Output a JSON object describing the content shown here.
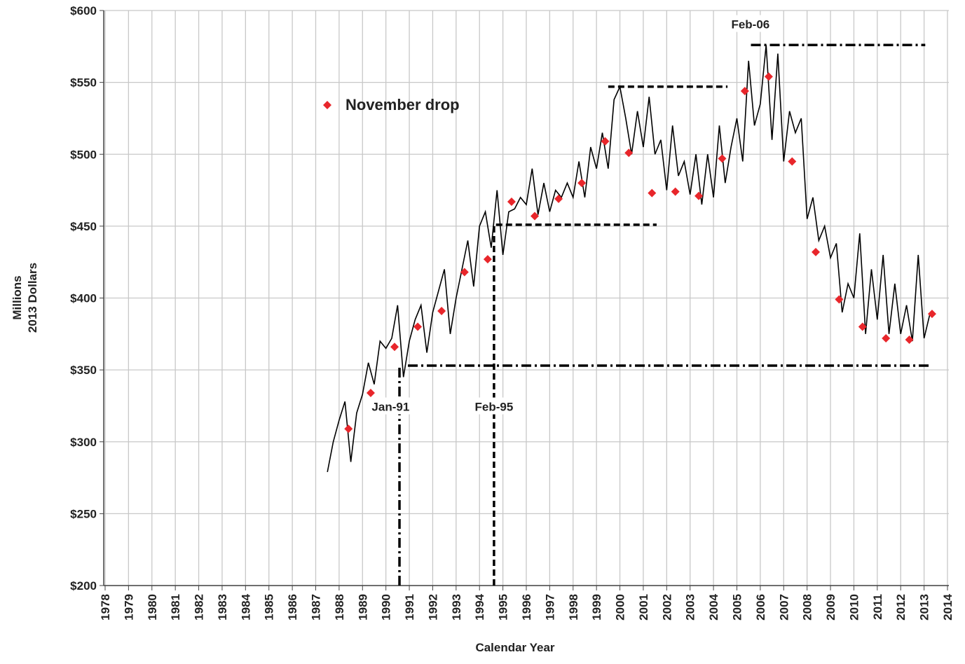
{
  "chart_data": {
    "type": "line",
    "xlabel": "Calendar Year",
    "ylabel": [
      "Millions",
      "2013 Dollars"
    ],
    "xlim": [
      1978,
      2014
    ],
    "ylim": [
      200,
      600
    ],
    "xticks": [
      1978,
      1979,
      1980,
      1981,
      1982,
      1983,
      1984,
      1985,
      1986,
      1987,
      1988,
      1989,
      1990,
      1991,
      1992,
      1993,
      1994,
      1995,
      1996,
      1997,
      1998,
      1999,
      2000,
      2001,
      2002,
      2003,
      2004,
      2005,
      2006,
      2007,
      2008,
      2009,
      2010,
      2011,
      2012,
      2013,
      2014
    ],
    "yticks": [
      {
        "value": 200,
        "label": "$200"
      },
      {
        "value": 250,
        "label": "$250"
      },
      {
        "value": 300,
        "label": "$300"
      },
      {
        "value": 350,
        "label": "$350"
      },
      {
        "value": 400,
        "label": "$400"
      },
      {
        "value": 450,
        "label": "$450"
      },
      {
        "value": 500,
        "label": "$500"
      },
      {
        "value": 550,
        "label": "$550"
      },
      {
        "value": 600,
        "label": "$600"
      }
    ],
    "grid": true,
    "x": [
      1987.5,
      1987.75,
      1988,
      1988.25,
      1988.5,
      1988.75,
      1989,
      1989.25,
      1989.5,
      1989.75,
      1990,
      1990.25,
      1990.5,
      1990.75,
      1991,
      1991.25,
      1991.5,
      1991.75,
      1992,
      1992.25,
      1992.5,
      1992.75,
      1993,
      1993.25,
      1993.5,
      1993.75,
      1994,
      1994.25,
      1994.5,
      1994.75,
      1995,
      1995.25,
      1995.5,
      1995.75,
      1996,
      1996.25,
      1996.5,
      1996.75,
      1997,
      1997.25,
      1997.5,
      1997.75,
      1998,
      1998.25,
      1998.5,
      1998.75,
      1999,
      1999.25,
      1999.5,
      1999.75,
      2000,
      2000.25,
      2000.5,
      2000.75,
      2001,
      2001.25,
      2001.5,
      2001.75,
      2002,
      2002.25,
      2002.5,
      2002.75,
      2003,
      2003.25,
      2003.5,
      2003.75,
      2004,
      2004.25,
      2004.5,
      2004.75,
      2005,
      2005.25,
      2005.5,
      2005.75,
      2006,
      2006.25,
      2006.5,
      2006.75,
      2007,
      2007.25,
      2007.5,
      2007.75,
      2008,
      2008.25,
      2008.5,
      2008.75,
      2009,
      2009.25,
      2009.5,
      2009.75,
      2010,
      2010.25,
      2010.5,
      2010.75,
      2011,
      2011.25,
      2011.5,
      2011.75,
      2012,
      2012.25,
      2012.5,
      2012.75,
      2013,
      2013.25
    ],
    "series": [
      {
        "color": "#000000",
        "values": [
          279,
          300,
          315,
          328,
          286,
          320,
          333,
          355,
          340,
          370,
          365,
          372,
          395,
          345,
          370,
          385,
          395,
          362,
          390,
          405,
          420,
          375,
          400,
          420,
          440,
          408,
          450,
          460,
          435,
          475,
          430,
          460,
          462,
          470,
          465,
          490,
          458,
          480,
          460,
          475,
          470,
          480,
          470,
          495,
          470,
          505,
          490,
          515,
          490,
          538,
          547,
          525,
          500,
          530,
          505,
          540,
          500,
          510,
          475,
          520,
          485,
          495,
          472,
          500,
          465,
          500,
          470,
          520,
          480,
          505,
          525,
          495,
          565,
          520,
          535,
          576,
          510,
          570,
          495,
          530,
          515,
          525,
          455,
          470,
          440,
          450,
          428,
          438,
          390,
          410,
          400,
          445,
          375,
          420,
          385,
          430,
          375,
          410,
          375,
          395,
          370,
          430,
          372,
          389
        ]
      },
      {
        "name": "November drop",
        "kind": "scatter",
        "color": "#e8262b",
        "x": [
          1988.4,
          1989.35,
          1990.37,
          1991.36,
          1992.38,
          1993.36,
          1994.35,
          1995.37,
          1996.36,
          1997.38,
          1998.37,
          1999.37,
          2000.38,
          2001.37,
          2002.37,
          2003.37,
          2004.37,
          2005.34,
          2006.36,
          2007.36,
          2008.37,
          2009.37,
          2010.37,
          2011.37,
          2012.37,
          2013.34
        ],
        "values": [
          309,
          334,
          366,
          380,
          391,
          418,
          427,
          467,
          457,
          469,
          480,
          509,
          501,
          473,
          474,
          471,
          497,
          544,
          554,
          495,
          432,
          399,
          380,
          372,
          371,
          389
        ]
      }
    ],
    "reference_lines": [
      {
        "style": "dashed",
        "x": [
          1999.5,
          2004.6
        ],
        "values": [
          547,
          547
        ]
      },
      {
        "style": "dashed",
        "x": [
          1994.62,
          1994.62,
          2001.57
        ],
        "values": [
          200,
          451,
          451
        ]
      },
      {
        "style": "dashdot",
        "x": [
          1990.58,
          1990.58
        ],
        "values": [
          200,
          353
        ]
      },
      {
        "style": "dashdot",
        "x": [
          1990.94,
          2013.3
        ],
        "values": [
          353,
          353
        ]
      },
      {
        "style": "dashdot",
        "x": [
          2005.6,
          2013.05
        ],
        "values": [
          576,
          576
        ]
      }
    ],
    "annotations": [
      {
        "text": "Jan-91",
        "x": 1990.2,
        "y": 323
      },
      {
        "text": "Feb-95",
        "x": 1994.62,
        "y": 323
      },
      {
        "text": "Feb-06",
        "x": 2005.58,
        "y": 589
      }
    ],
    "legend": "upper left"
  }
}
